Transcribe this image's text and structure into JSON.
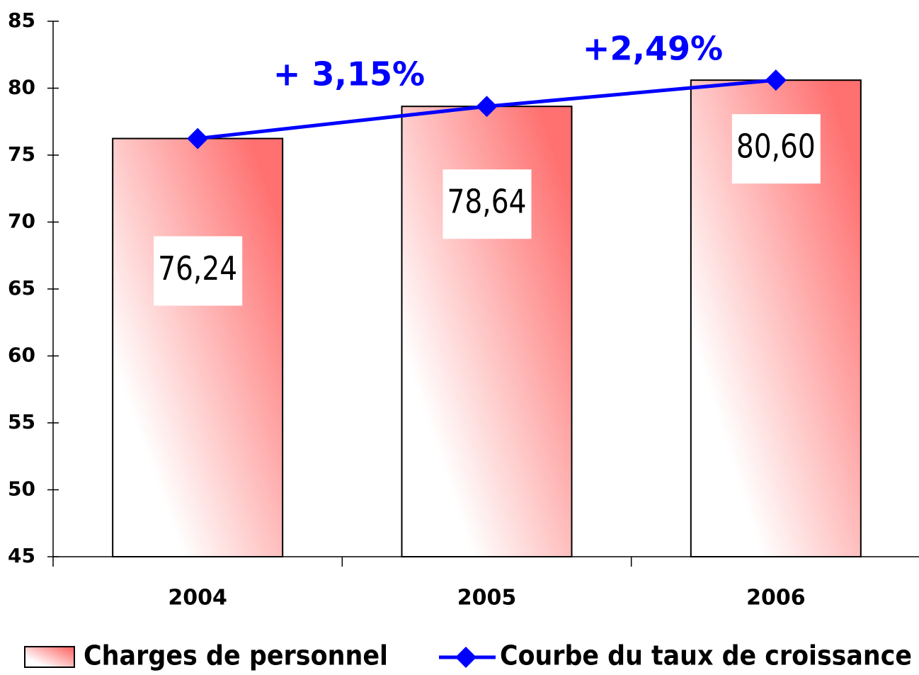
{
  "chart_data": {
    "type": "bar_line",
    "categories": [
      "2004",
      "2005",
      "2006"
    ],
    "series": [
      {
        "name": "Charges de personnel",
        "type": "bar",
        "color": "#ff7070",
        "values": [
          76.24,
          78.64,
          80.6
        ],
        "value_labels": [
          "76,24",
          "78,64",
          "80,60"
        ]
      },
      {
        "name": "Courbe du taux de croissance",
        "type": "line",
        "color": "#0000ff",
        "values": [
          76.24,
          78.64,
          80.6
        ]
      }
    ],
    "annotations": [
      "+ 3,15%",
      "+2,49%"
    ],
    "ylim": [
      45,
      85
    ],
    "yticks": [
      45,
      50,
      55,
      60,
      65,
      70,
      75,
      80,
      85
    ],
    "legend": "bottom"
  }
}
